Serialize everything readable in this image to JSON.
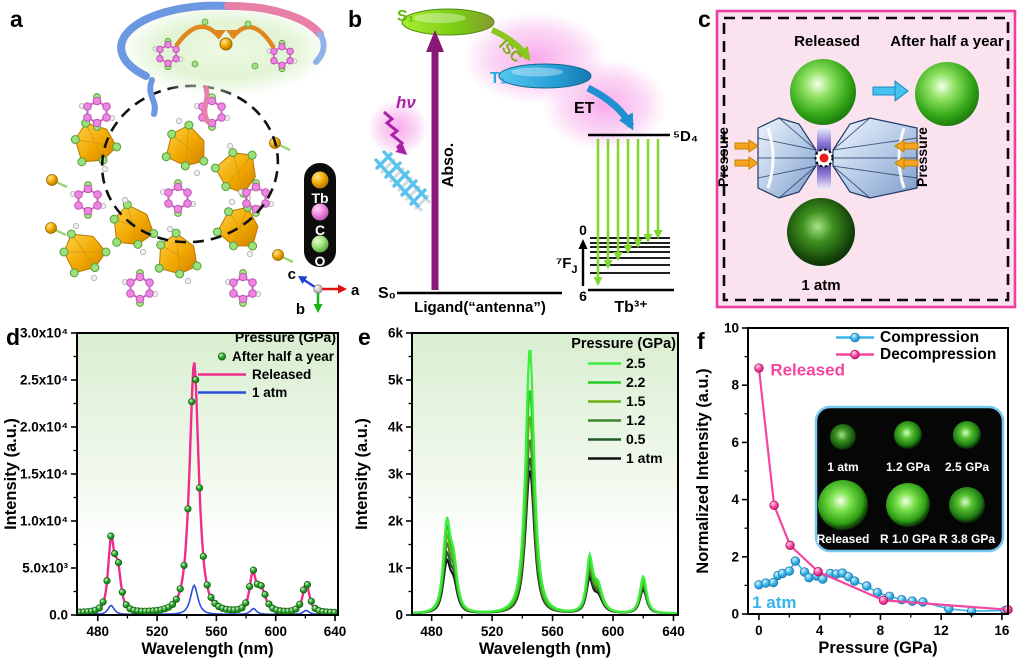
{
  "figure": {
    "panels": {
      "a": {
        "label": "a",
        "legend": {
          "items": [
            {
              "name": "Tb",
              "color": "#f0a800"
            },
            {
              "name": "C",
              "color": "#ee85e0"
            },
            {
              "name": "O",
              "color": "#9be07a"
            }
          ]
        },
        "axes": {
          "a": "a",
          "b": "b",
          "c": "c"
        }
      },
      "b": {
        "label": "b",
        "states": {
          "s1": "S₁",
          "t1": "T₁",
          "s0": "S₀"
        },
        "arrows": {
          "isc": "ISC",
          "et": "ET",
          "abso": "Abso.",
          "hv": "hν"
        },
        "levels": {
          "d4": "⁵D₄",
          "f_base": "⁷F",
          "f_sub": "J",
          "j_top": "0",
          "j_bottom": "6"
        },
        "footer": {
          "ligand": "Ligand(“antenna”)",
          "tb": "Tb³⁺"
        }
      },
      "c": {
        "label": "c",
        "released": "Released",
        "after": "After half a year",
        "one_atm": "1 atm",
        "pressure_left": "Pressure",
        "pressure_right": "Pressure",
        "border_color": "#ee3fa0",
        "fill_color": "#fae3ef"
      },
      "d": {
        "label": "d"
      },
      "e": {
        "label": "e"
      },
      "f": {
        "label": "f"
      }
    }
  },
  "chart_data": [
    {
      "id": "d",
      "type": "line",
      "xlabel": "Wavelength (nm)",
      "ylabel": "Intensity (a.u.)",
      "xlim": [
        466,
        642
      ],
      "ylim": [
        0,
        30000
      ],
      "xticks": [
        480,
        520,
        560,
        600,
        640
      ],
      "yticks": [
        0,
        5000,
        10000,
        15000,
        20000,
        25000,
        30000
      ],
      "ytick_labels": [
        "0.0",
        "5.0x10³",
        "1.0x10⁴",
        "1.5x10⁴",
        "2.0x10⁴",
        "2.5x10⁴",
        "3.0x10⁴"
      ],
      "legend_title": "Pressure (GPa)",
      "grid": false,
      "background_gradient": [
        "#d9eed0",
        "#ffffff"
      ],
      "series": [
        {
          "name": "After half a year",
          "style": "dots",
          "color": "#2fa52f",
          "width": 2,
          "base": 250,
          "peaks": [
            [
              489,
              7300,
              3.0
            ],
            [
              493.5,
              4300,
              3.2
            ],
            [
              545,
              26500,
              4.5
            ],
            [
              584.5,
              3950,
              3.2
            ],
            [
              590.5,
              2300,
              4.5
            ],
            [
              620.5,
              3250,
              3.4
            ]
          ]
        },
        {
          "name": "Released",
          "style": "line",
          "color": "#f02d8c",
          "width": 2.4,
          "base": 120,
          "peaks": [
            [
              489,
              7300,
              3.0
            ],
            [
              493.5,
              4300,
              3.2
            ],
            [
              545,
              26800,
              4.5
            ],
            [
              584.5,
              3950,
              3.2
            ],
            [
              590.5,
              2300,
              4.5
            ],
            [
              620.5,
              3250,
              3.4
            ]
          ]
        },
        {
          "name": "1 atm",
          "style": "line",
          "color": "#2b4fd8",
          "width": 1.6,
          "base": 60,
          "peaks": [
            [
              489,
              950,
              3.0
            ],
            [
              545,
              3100,
              3.6
            ],
            [
              585,
              620,
              3.0
            ],
            [
              620.5,
              420,
              3.0
            ]
          ]
        }
      ]
    },
    {
      "id": "e",
      "type": "line",
      "xlabel": "Wavelength (nm)",
      "ylabel": "Intensity (a.u.)",
      "xlim": [
        467,
        643
      ],
      "ylim": [
        0,
        6000
      ],
      "xticks": [
        480,
        520,
        560,
        600,
        640
      ],
      "yticks": [
        0,
        1000,
        2000,
        3000,
        4000,
        5000,
        6000
      ],
      "ytick_labels": [
        "0",
        "1k",
        "2k",
        "3k",
        "4k",
        "5k",
        "6k"
      ],
      "legend_title": "Pressure (GPa)",
      "grid": false,
      "background_gradient": [
        "#d9eed0",
        "#ffffff"
      ],
      "series": [
        {
          "name": "2.5",
          "style": "line",
          "color": "#3dee3d",
          "width": 2.2,
          "base": 35,
          "peaks": [
            [
              490,
              1780,
              3.4
            ],
            [
              494.5,
              950,
              3.6
            ],
            [
              545,
              5650,
              4.2
            ],
            [
              584.5,
              1080,
              3.0
            ],
            [
              590,
              560,
              4.5
            ],
            [
              620,
              780,
              3.2
            ]
          ]
        },
        {
          "name": "2.2",
          "style": "line",
          "color": "#26cc26",
          "width": 2.1,
          "base": 35,
          "peaks": [
            [
              490,
              1600,
              3.4
            ],
            [
              494.5,
              880,
              3.6
            ],
            [
              545,
              4780,
              4.2
            ],
            [
              584.5,
              990,
              3.0
            ],
            [
              590,
              510,
              4.5
            ],
            [
              620,
              720,
              3.2
            ]
          ]
        },
        {
          "name": "1.5",
          "style": "line",
          "color": "#6fae14",
          "width": 2.0,
          "base": 35,
          "peaks": [
            [
              490,
              1440,
              3.4
            ],
            [
              494.5,
              800,
              3.6
            ],
            [
              545,
              4220,
              4.2
            ],
            [
              584.5,
              900,
              3.0
            ],
            [
              590,
              470,
              4.5
            ],
            [
              620,
              660,
              3.2
            ]
          ]
        },
        {
          "name": "1.2",
          "style": "line",
          "color": "#3d8430",
          "width": 2.0,
          "base": 35,
          "peaks": [
            [
              490,
              1280,
              3.4
            ],
            [
              494.5,
              720,
              3.6
            ],
            [
              545,
              3720,
              4.2
            ],
            [
              584.5,
              820,
              3.0
            ],
            [
              590,
              430,
              4.5
            ],
            [
              620,
              600,
              3.2
            ]
          ]
        },
        {
          "name": "0.5",
          "style": "line",
          "color": "#1e5c28",
          "width": 2.0,
          "base": 35,
          "peaks": [
            [
              490,
              1110,
              3.4
            ],
            [
              494.5,
              640,
              3.6
            ],
            [
              545,
              3330,
              4.2
            ],
            [
              584.5,
              730,
              3.0
            ],
            [
              590,
              390,
              4.5
            ],
            [
              620,
              545,
              3.2
            ]
          ]
        },
        {
          "name": "1 atm",
          "style": "line",
          "color": "#111111",
          "width": 2.0,
          "base": 35,
          "peaks": [
            [
              490,
              980,
              3.4
            ],
            [
              494.5,
              560,
              3.6
            ],
            [
              545,
              3060,
              4.2
            ],
            [
              584.5,
              650,
              3.0
            ],
            [
              590,
              350,
              4.5
            ],
            [
              620,
              500,
              3.2
            ]
          ]
        }
      ]
    },
    {
      "id": "f",
      "type": "scatter",
      "xlabel": "Pressure (GPa)",
      "ylabel": "Normalized Intensity (a.u.)",
      "xlim": [
        -0.72,
        16.4
      ],
      "ylim": [
        0,
        10
      ],
      "xticks": [
        0,
        4,
        8,
        12,
        16
      ],
      "yticks": [
        0,
        2,
        4,
        6,
        8,
        10
      ],
      "ytick_labels": [
        "0",
        "2",
        "4",
        "6",
        "8",
        "10"
      ],
      "series": [
        {
          "name": "Compression",
          "color": "#38b4e8",
          "width": 1.6,
          "points": [
            [
              0,
              1.02
            ],
            [
              0.45,
              1.08
            ],
            [
              0.95,
              1.1
            ],
            [
              1.25,
              1.35
            ],
            [
              1.55,
              1.42
            ],
            [
              2.0,
              1.5
            ],
            [
              2.4,
              1.85
            ],
            [
              3.0,
              1.47
            ],
            [
              3.3,
              1.27
            ],
            [
              3.8,
              1.33
            ],
            [
              4.2,
              1.22
            ],
            [
              4.7,
              1.42
            ],
            [
              5.1,
              1.4
            ],
            [
              5.5,
              1.43
            ],
            [
              5.9,
              1.3
            ],
            [
              6.3,
              1.15
            ],
            [
              7.1,
              0.98
            ],
            [
              7.8,
              0.75
            ],
            [
              8.6,
              0.62
            ],
            [
              9.4,
              0.5
            ],
            [
              10.1,
              0.45
            ],
            [
              10.8,
              0.42
            ],
            [
              12.5,
              0.18
            ],
            [
              14.0,
              0.1
            ],
            [
              16.2,
              0.12
            ]
          ]
        },
        {
          "name": "Decompression",
          "color": "#f545a0",
          "width": 2.2,
          "points": [
            [
              0,
              8.6
            ],
            [
              1.0,
              3.8
            ],
            [
              2.05,
              2.4
            ],
            [
              3.9,
              1.48
            ],
            [
              8.2,
              0.48
            ],
            [
              16.4,
              0.15
            ]
          ]
        }
      ],
      "annotations": [
        {
          "text": "Released",
          "color": "#f545a0",
          "x": 0.75,
          "y": 8.55
        },
        {
          "text": "1 atm",
          "color": "#38b4e8",
          "x": -0.45,
          "y": 0.42
        }
      ],
      "inset": {
        "border_color": "#78c8f2",
        "bg": "#060606",
        "labels": [
          "1 atm",
          "1.2 GPa",
          "2.5 GPa",
          "Released",
          "R 1.0 GPa",
          "R 3.8 GPa"
        ]
      }
    }
  ]
}
